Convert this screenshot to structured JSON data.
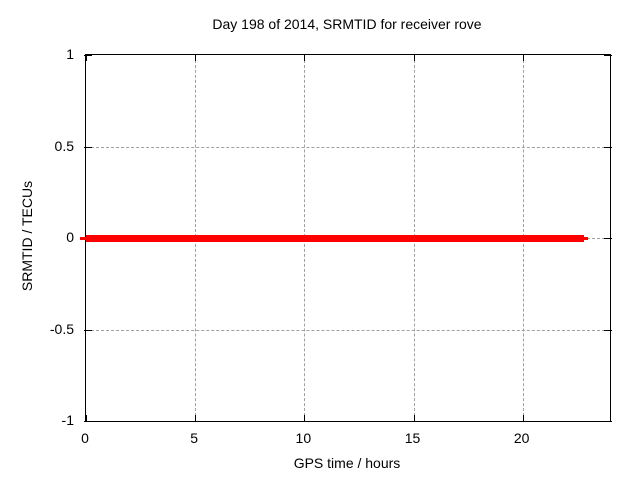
{
  "chart_data": {
    "type": "line",
    "title": "Day 198 of 2014, SRMTID for receiver rove",
    "xlabel": "GPS time / hours",
    "ylabel": "SRMTID / TECUs",
    "xlim": [
      0,
      24
    ],
    "ylim": [
      -1,
      1
    ],
    "xticks": [
      0,
      5,
      10,
      15,
      20
    ],
    "xtick_labels": [
      "0",
      "5",
      "10",
      "15",
      "20"
    ],
    "yticks": [
      -1,
      -0.5,
      0,
      0.5,
      1
    ],
    "ytick_labels": [
      "-1",
      "-0.5",
      "0",
      "0.5",
      "1"
    ],
    "grid": "dashed",
    "grid_color": "#a0a0a0",
    "border_color": "#000000",
    "background_color": "#ffffff",
    "legend_position": "none",
    "series": [
      {
        "name": "SRMTID",
        "color": "#ff0000",
        "x": [
          0,
          22.8
        ],
        "y": [
          0,
          0
        ]
      }
    ]
  }
}
